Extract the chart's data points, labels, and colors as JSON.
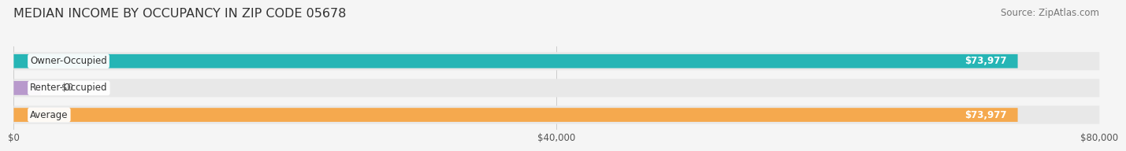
{
  "title": "MEDIAN INCOME BY OCCUPANCY IN ZIP CODE 05678",
  "source": "Source: ZipAtlas.com",
  "categories": [
    "Owner-Occupied",
    "Renter-Occupied",
    "Average"
  ],
  "values": [
    73977,
    0,
    73977
  ],
  "bar_colors": [
    "#26b5b5",
    "#b899cc",
    "#f5a94e"
  ],
  "bar_bg_color": "#e8e8e8",
  "xlim": [
    0,
    80000
  ],
  "xticks": [
    0,
    40000,
    80000
  ],
  "xtick_labels": [
    "$0",
    "$40,000",
    "$80,000"
  ],
  "value_labels": [
    "$73,977",
    "$0",
    "$73,977"
  ],
  "title_fontsize": 11.5,
  "source_fontsize": 8.5,
  "tick_fontsize": 8.5,
  "bar_label_fontsize": 8.5,
  "value_label_fontsize": 8.5,
  "figsize": [
    14.06,
    1.96
  ],
  "dpi": 100
}
